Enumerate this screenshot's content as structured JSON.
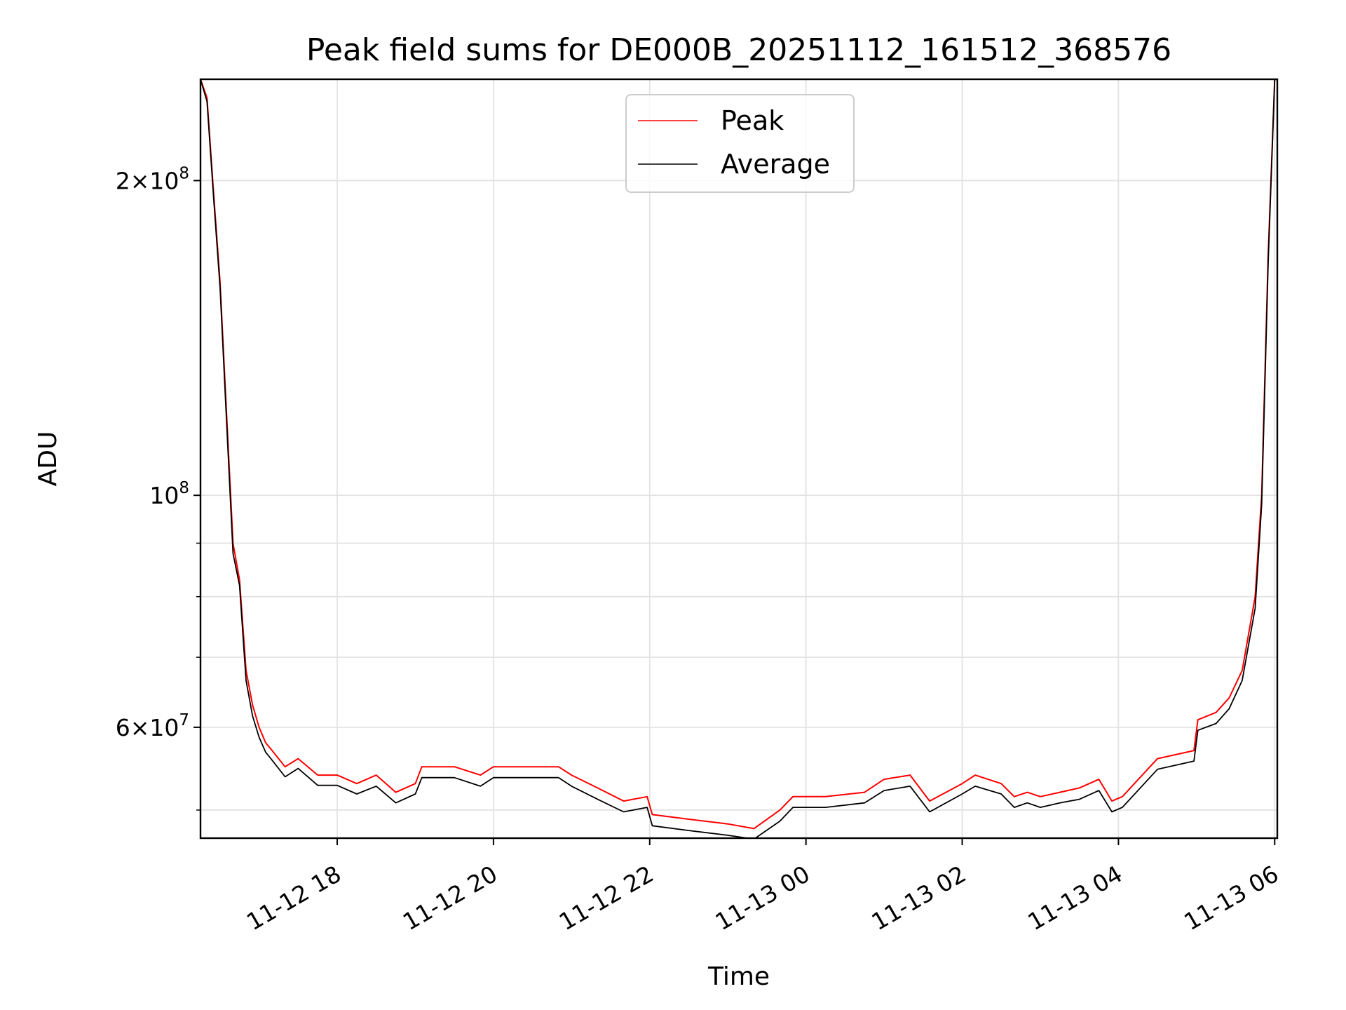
{
  "chart_data": {
    "type": "line",
    "title": "Peak field sums for DE000B_20251112_161512_368576",
    "xlabel": "Time",
    "ylabel": "ADU",
    "yscale": "log",
    "xlim": [
      "2025-11-12 16:15",
      "2025-11-13 06:02"
    ],
    "ylim": [
      47000000,
      250000000
    ],
    "grid": true,
    "legend": {
      "position": "upper-center"
    },
    "x_ticks": [
      {
        "value": "2025-11-12 18:00",
        "label": "11-12 18"
      },
      {
        "value": "2025-11-12 20:00",
        "label": "11-12 20"
      },
      {
        "value": "2025-11-12 22:00",
        "label": "11-12 22"
      },
      {
        "value": "2025-11-13 00:00",
        "label": "11-13 00"
      },
      {
        "value": "2025-11-13 02:00",
        "label": "11-13 02"
      },
      {
        "value": "2025-11-13 04:00",
        "label": "11-13 04"
      },
      {
        "value": "2025-11-13 06:00",
        "label": "11-13 06"
      }
    ],
    "y_major_ticks": [
      {
        "value": 60000000,
        "base": "6",
        "exponent": "7"
      },
      {
        "value": 100000000,
        "base": "",
        "exponent": "8"
      },
      {
        "value": 200000000,
        "base": "2",
        "exponent": "8"
      }
    ],
    "y_minor_ticks": [
      50000000,
      70000000,
      80000000,
      90000000
    ],
    "x": [
      "2025-11-12 16:15",
      "2025-11-12 16:20",
      "2025-11-12 16:25",
      "2025-11-12 16:30",
      "2025-11-12 16:35",
      "2025-11-12 16:40",
      "2025-11-12 16:45",
      "2025-11-12 16:50",
      "2025-11-12 16:55",
      "2025-11-12 17:00",
      "2025-11-12 17:05",
      "2025-11-12 17:10",
      "2025-11-12 17:20",
      "2025-11-12 17:30",
      "2025-11-12 17:45",
      "2025-11-12 18:00",
      "2025-11-12 18:15",
      "2025-11-12 18:30",
      "2025-11-12 18:45",
      "2025-11-12 19:00",
      "2025-11-12 19:05",
      "2025-11-12 19:30",
      "2025-11-12 19:50",
      "2025-11-12 20:00",
      "2025-11-12 20:30",
      "2025-11-12 20:50",
      "2025-11-12 21:00",
      "2025-11-12 21:20",
      "2025-11-12 21:40",
      "2025-11-12 21:58",
      "2025-11-12 22:02",
      "2025-11-12 22:30",
      "2025-11-12 23:00",
      "2025-11-12 23:20",
      "2025-11-12 23:40",
      "2025-11-12 23:50",
      "2025-11-13 00:15",
      "2025-11-13 00:45",
      "2025-11-13 01:00",
      "2025-11-13 01:20",
      "2025-11-13 01:35",
      "2025-11-13 02:00",
      "2025-11-13 02:10",
      "2025-11-13 02:30",
      "2025-11-13 02:40",
      "2025-11-13 02:50",
      "2025-11-13 03:00",
      "2025-11-13 03:15",
      "2025-11-13 03:30",
      "2025-11-13 03:45",
      "2025-11-13 03:55",
      "2025-11-13 04:03",
      "2025-11-13 04:30",
      "2025-11-13 04:58",
      "2025-11-13 05:01",
      "2025-11-13 05:15",
      "2025-11-13 05:25",
      "2025-11-13 05:35",
      "2025-11-13 05:45",
      "2025-11-13 05:50",
      "2025-11-13 05:55",
      "2025-11-13 06:00"
    ],
    "series": [
      {
        "name": "Peak",
        "color": "#ff0000",
        "values": [
          250000000,
          240000000,
          195000000,
          160000000,
          120000000,
          90000000,
          83000000,
          68000000,
          63000000,
          60000000,
          58000000,
          57000000,
          55000000,
          56000000,
          54000000,
          54000000,
          53000000,
          54000000,
          52000000,
          53000000,
          55000000,
          55000000,
          54000000,
          55000000,
          55000000,
          55000000,
          54000000,
          52500000,
          51000000,
          51500000,
          49500000,
          49000000,
          48500000,
          48000000,
          50000000,
          51500000,
          51500000,
          52000000,
          53500000,
          54000000,
          51000000,
          53000000,
          54000000,
          53000000,
          51500000,
          52000000,
          51500000,
          52000000,
          52500000,
          53500000,
          51000000,
          51500000,
          56000000,
          57000000,
          61000000,
          62000000,
          64000000,
          68000000,
          80000000,
          100000000,
          170000000,
          250000000
        ]
      },
      {
        "name": "Average",
        "color": "#000000",
        "values": [
          250000000,
          238000000,
          193000000,
          158000000,
          118000000,
          88000000,
          82000000,
          66500000,
          61500000,
          58700000,
          56800000,
          55800000,
          53800000,
          54800000,
          52800000,
          52800000,
          51800000,
          52700000,
          50800000,
          51800000,
          53700000,
          53700000,
          52700000,
          53700000,
          53700000,
          53700000,
          52700000,
          51200000,
          49800000,
          50300000,
          48300000,
          47800000,
          47300000,
          46900000,
          48800000,
          50300000,
          50300000,
          50800000,
          52200000,
          52700000,
          49800000,
          51800000,
          52700000,
          51800000,
          50300000,
          50800000,
          50300000,
          50800000,
          51200000,
          52200000,
          49800000,
          50300000,
          54700000,
          55700000,
          59600000,
          60500000,
          62500000,
          66500000,
          78000000,
          98000000,
          167000000,
          250000000
        ]
      }
    ]
  }
}
